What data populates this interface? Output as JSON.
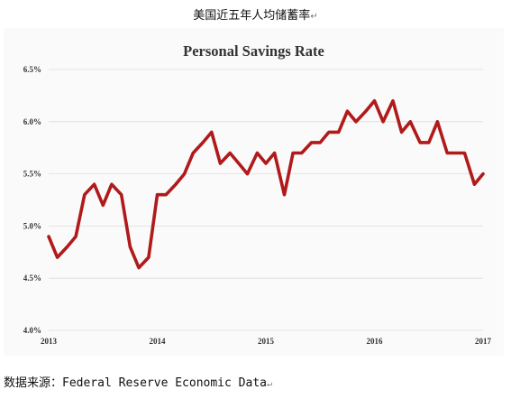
{
  "doc_title": "美国近五年人均储蓄率",
  "source_text": "数据来源：Federal Reserve Economic Data",
  "paragraph_mark": "↵",
  "chart_data": {
    "type": "line",
    "title": "Personal Savings Rate",
    "xlabel": "",
    "ylabel": "",
    "x_tick_labels": [
      "2013",
      "2014",
      "2015",
      "2016",
      "2017"
    ],
    "y_tick_labels": [
      "4.0%",
      "4.5%",
      "5.0%",
      "5.5%",
      "6.0%",
      "6.5%"
    ],
    "y_ticks": [
      4.0,
      4.5,
      5.0,
      5.5,
      6.0,
      6.5
    ],
    "xlim": [
      2013,
      2017
    ],
    "ylim": [
      4.0,
      6.5
    ],
    "grid": true,
    "line_color": "#b01a1a",
    "series": [
      {
        "x": [
          2013.0,
          2013.08,
          2013.17,
          2013.25,
          2013.33,
          2013.42,
          2013.5,
          2013.58,
          2013.67,
          2013.75,
          2013.83,
          2013.92,
          2014.0,
          2014.08,
          2014.17,
          2014.25,
          2014.33,
          2014.42,
          2014.5,
          2014.58,
          2014.67,
          2014.75,
          2014.83,
          2014.92,
          2015.0,
          2015.08,
          2015.17,
          2015.25,
          2015.33,
          2015.42,
          2015.5,
          2015.58,
          2015.67,
          2015.75,
          2015.83,
          2015.92,
          2016.0,
          2016.08,
          2016.17,
          2016.25,
          2016.33,
          2016.42,
          2016.5,
          2016.58,
          2016.67,
          2016.75,
          2016.83,
          2016.92,
          2017.0
        ],
        "values": [
          4.9,
          4.7,
          4.8,
          4.9,
          5.3,
          5.4,
          5.2,
          5.4,
          5.3,
          4.8,
          4.6,
          4.7,
          5.3,
          5.3,
          5.4,
          5.5,
          5.7,
          5.8,
          5.9,
          5.6,
          5.7,
          5.6,
          5.5,
          5.7,
          5.6,
          5.7,
          5.3,
          5.7,
          5.7,
          5.8,
          5.8,
          5.9,
          5.9,
          6.1,
          6.0,
          6.1,
          6.2,
          6.0,
          6.2,
          5.9,
          6.0,
          5.8,
          5.8,
          6.0,
          5.7,
          5.7,
          5.7,
          5.4,
          5.5
        ]
      }
    ]
  }
}
